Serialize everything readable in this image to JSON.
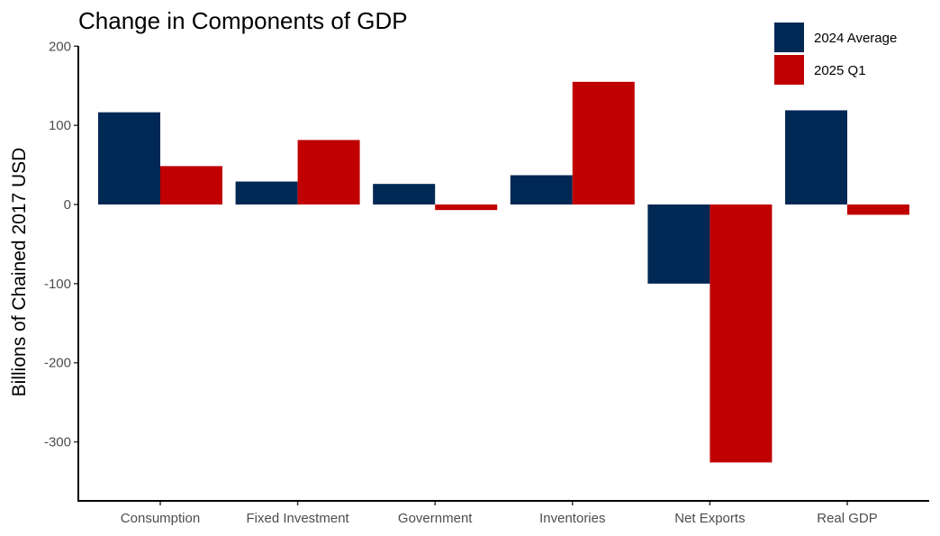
{
  "chart_data": {
    "type": "bar",
    "title": "Change in Components of GDP",
    "xlabel": "",
    "ylabel": "Billions of Chained 2017 USD",
    "ylim": [
      -375,
      200
    ],
    "yticks": [
      200,
      100,
      0,
      -100,
      -200,
      -300
    ],
    "ytick_labels": [
      "200",
      "100",
      "0",
      "-100",
      "-200",
      "-300"
    ],
    "grid": false,
    "legend_position": "top-right",
    "categories": [
      "Consumption",
      "Fixed Investment",
      "Government",
      "Inventories",
      "Net Exports",
      "Real GDP"
    ],
    "series": [
      {
        "name": "2024 Average",
        "color": "#002855",
        "values": [
          116.5,
          29,
          26,
          37,
          -100,
          119
        ]
      },
      {
        "name": "2025 Q1",
        "color": "#C00000",
        "values": [
          48.5,
          81.5,
          -7,
          155,
          -326,
          -13
        ]
      }
    ]
  }
}
